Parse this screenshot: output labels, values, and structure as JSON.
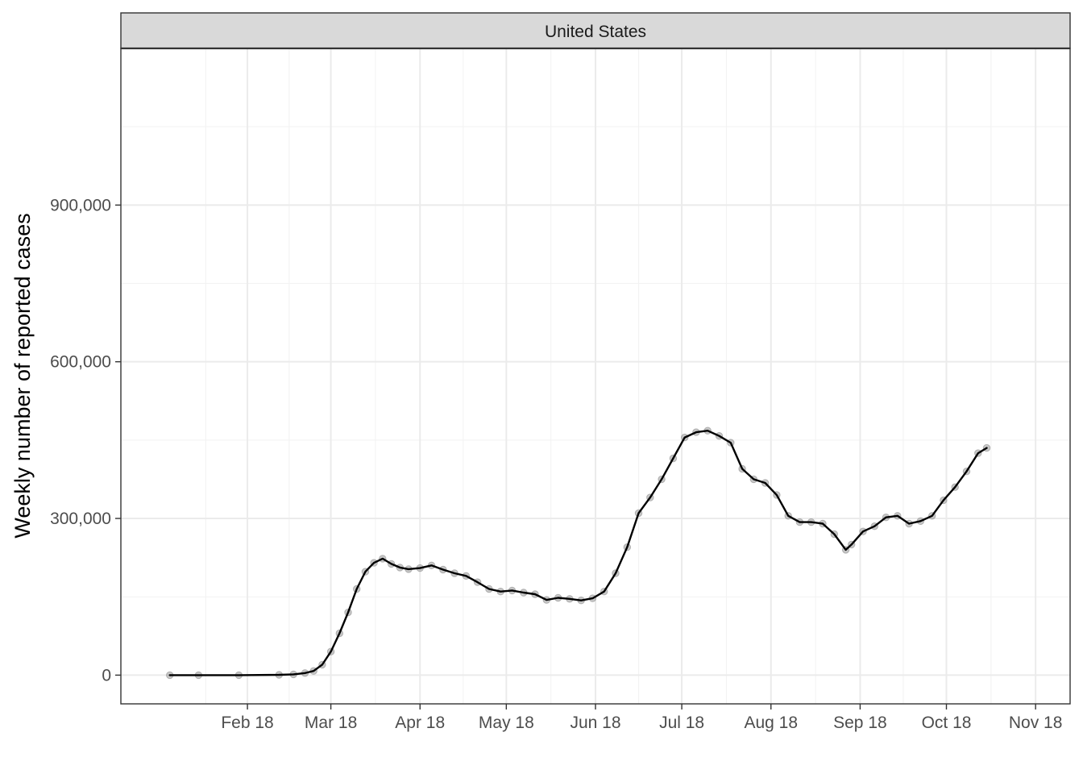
{
  "chart_data": {
    "type": "line",
    "facet_label": "United States",
    "title": "",
    "xlabel": "",
    "ylabel": "Weekly number of reported cases",
    "x_tick_labels": [
      "Feb 18",
      "Mar 18",
      "Apr 18",
      "May 18",
      "Jun 18",
      "Jul 18",
      "Aug 18",
      "Sep 18",
      "Oct 18",
      "Nov 18"
    ],
    "x_ticks": [
      "2020-02-18",
      "2020-03-18",
      "2020-04-18",
      "2020-05-18",
      "2020-06-18",
      "2020-07-18",
      "2020-08-18",
      "2020-09-18",
      "2020-10-18",
      "2020-11-18"
    ],
    "xlim": [
      "2020-01-05",
      "2020-11-30"
    ],
    "y_ticks": [
      0,
      300000,
      600000,
      900000
    ],
    "y_tick_labels": [
      "0",
      "300,000",
      "600,000",
      "900,000"
    ],
    "ylim": [
      -55000,
      1200000
    ],
    "grid": true,
    "legend": "none",
    "colors": {
      "line": "#000000",
      "points": "#999999",
      "grid": "#ebebeb",
      "strip_fill": "#d9d9d9",
      "border": "#333333"
    },
    "series": [
      {
        "x": [
          "2020-01-22",
          "2020-02-01",
          "2020-02-15",
          "2020-02-29",
          "2020-03-05",
          "2020-03-09",
          "2020-03-12",
          "2020-03-15",
          "2020-03-18",
          "2020-03-21",
          "2020-03-24",
          "2020-03-27",
          "2020-03-30",
          "2020-04-02",
          "2020-04-05",
          "2020-04-08",
          "2020-04-11",
          "2020-04-14",
          "2020-04-18",
          "2020-04-22",
          "2020-04-26",
          "2020-04-30",
          "2020-05-04",
          "2020-05-08",
          "2020-05-12",
          "2020-05-16",
          "2020-05-20",
          "2020-05-24",
          "2020-05-28",
          "2020-06-01",
          "2020-06-05",
          "2020-06-09",
          "2020-06-13",
          "2020-06-17",
          "2020-06-21",
          "2020-06-25",
          "2020-06-29",
          "2020-07-03",
          "2020-07-07",
          "2020-07-11",
          "2020-07-15",
          "2020-07-19",
          "2020-07-23",
          "2020-07-27",
          "2020-07-31",
          "2020-08-04",
          "2020-08-08",
          "2020-08-12",
          "2020-08-16",
          "2020-08-20",
          "2020-08-24",
          "2020-08-28",
          "2020-09-01",
          "2020-09-05",
          "2020-09-09",
          "2020-09-13",
          "2020-09-15",
          "2020-09-19",
          "2020-09-23",
          "2020-09-27",
          "2020-10-01",
          "2020-10-05",
          "2020-10-09",
          "2020-10-13",
          "2020-10-17",
          "2020-10-21",
          "2020-10-25",
          "2020-10-29",
          "2020-11-01"
        ],
        "y": [
          0,
          0,
          0,
          500,
          1500,
          4000,
          8000,
          20000,
          45000,
          80000,
          120000,
          165000,
          198000,
          215000,
          223000,
          213000,
          206000,
          203000,
          205000,
          210000,
          202000,
          195000,
          190000,
          178000,
          165000,
          160000,
          162000,
          158000,
          155000,
          144000,
          148000,
          146000,
          143000,
          147000,
          160000,
          195000,
          245000,
          310000,
          340000,
          375000,
          415000,
          455000,
          465000,
          468000,
          458000,
          445000,
          395000,
          375000,
          368000,
          345000,
          305000,
          293000,
          293000,
          290000,
          270000,
          240000,
          250000,
          275000,
          285000,
          302000,
          305000,
          290000,
          295000,
          305000,
          335000,
          360000,
          390000,
          425000,
          435000
        ]
      }
    ]
  }
}
